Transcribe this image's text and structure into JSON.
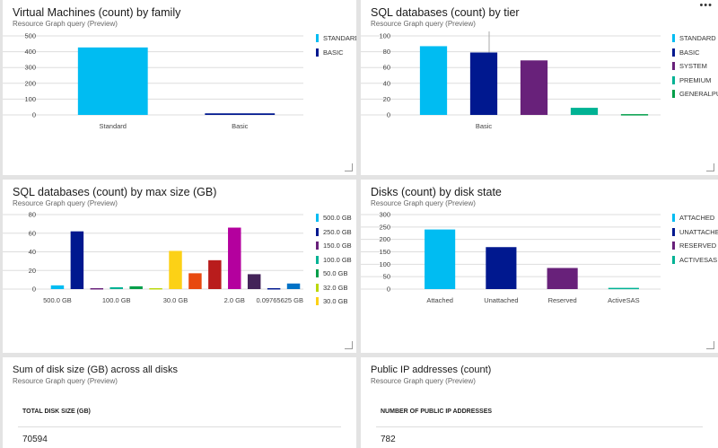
{
  "common": {
    "subtitle": "Resource Graph query (Preview)"
  },
  "panels": {
    "vm_family": {
      "title": "Virtual Machines (count) by family"
    },
    "sql_tier": {
      "title": "SQL databases (count) by tier"
    },
    "sql_size": {
      "title": "SQL databases (count) by max size (GB)"
    },
    "disk_state": {
      "title": "Disks (count) by disk state"
    },
    "disk_sum": {
      "title": "Sum of disk size (GB) across all disks",
      "column": "TOTAL DISK SIZE (GB)",
      "value": "70594"
    },
    "public_ip": {
      "title": "Public IP addresses (count)",
      "column": "NUMBER OF PUBLIC IP ADDRESSES",
      "value": "782"
    }
  },
  "more_icon": "ellipsis-icon",
  "chart_data": [
    {
      "id": "vm_family",
      "type": "bar",
      "categories": [
        "Standard",
        "Basic"
      ],
      "xtick_labels": [
        "Standard",
        "Basic"
      ],
      "values": [
        427,
        10
      ],
      "colors": [
        "#00bcf2",
        "#00188f"
      ],
      "legend": [
        "STANDARD",
        "BASIC"
      ],
      "ylim": [
        0,
        500
      ],
      "yticks": [
        0,
        100,
        200,
        300,
        400,
        500
      ],
      "grid": true,
      "legend_position": "right"
    },
    {
      "id": "sql_tier",
      "type": "bar",
      "categories": [
        "Standard",
        "Basic",
        "System",
        "Premium",
        "GeneralPurpose"
      ],
      "xtick_labels": [
        "",
        "Basic",
        "",
        "",
        ""
      ],
      "values": [
        87,
        79,
        69,
        9,
        1
      ],
      "colors": [
        "#00bcf2",
        "#00188f",
        "#68217a",
        "#00b294",
        "#009e49"
      ],
      "legend": [
        "STANDARD",
        "BASIC",
        "SYSTEM",
        "PREMIUM",
        "GENERALPU"
      ],
      "ylim": [
        0,
        100
      ],
      "yticks": [
        0,
        20,
        40,
        60,
        80,
        100
      ],
      "grid": true,
      "legend_position": "right"
    },
    {
      "id": "sql_size",
      "type": "bar",
      "categories": [
        "500.0 GB",
        "250.0 GB",
        "150.0 GB",
        "100.0 GB",
        "50.0 GB",
        "32.0 GB",
        "30.0 GB",
        "",
        "",
        "2.0 GB",
        "",
        "",
        "0.09765625 GB"
      ],
      "xtick_labels": [
        "500.0 GB",
        "",
        "",
        "100.0 GB",
        "",
        "",
        "30.0 GB",
        "",
        "",
        "2.0 GB",
        "",
        "",
        "0.09765625 GB"
      ],
      "values": [
        4,
        62,
        1,
        2,
        3,
        1,
        41,
        17,
        31,
        66,
        16,
        1,
        6
      ],
      "colors": [
        "#00bcf2",
        "#00188f",
        "#68217a",
        "#00b294",
        "#009e49",
        "#bad80a",
        "#fcd116",
        "#e8490f",
        "#b91c1c",
        "#b4009e",
        "#442359",
        "#00188f",
        "#0072c6"
      ],
      "legend": [
        "500.0 GB",
        "250.0 GB",
        "150.0 GB",
        "100.0 GB",
        "50.0 GB",
        "32.0 GB",
        "30.0 GB"
      ],
      "ylim": [
        0,
        80
      ],
      "yticks": [
        0,
        20,
        40,
        60,
        80
      ],
      "grid": true,
      "legend_position": "right"
    },
    {
      "id": "disk_state",
      "type": "bar",
      "categories": [
        "Attached",
        "Unattached",
        "Reserved",
        "ActiveSAS"
      ],
      "xtick_labels": [
        "Attached",
        "Unattached",
        "Reserved",
        "ActiveSAS"
      ],
      "values": [
        240,
        169,
        85,
        5
      ],
      "colors": [
        "#00bcf2",
        "#00188f",
        "#68217a",
        "#00b294"
      ],
      "legend": [
        "ATTACHED",
        "UNATTACHE",
        "RESERVED",
        "ACTIVESAS"
      ],
      "ylim": [
        0,
        300
      ],
      "yticks": [
        0,
        50,
        100,
        150,
        200,
        250,
        300
      ],
      "grid": true,
      "legend_position": "right"
    }
  ]
}
